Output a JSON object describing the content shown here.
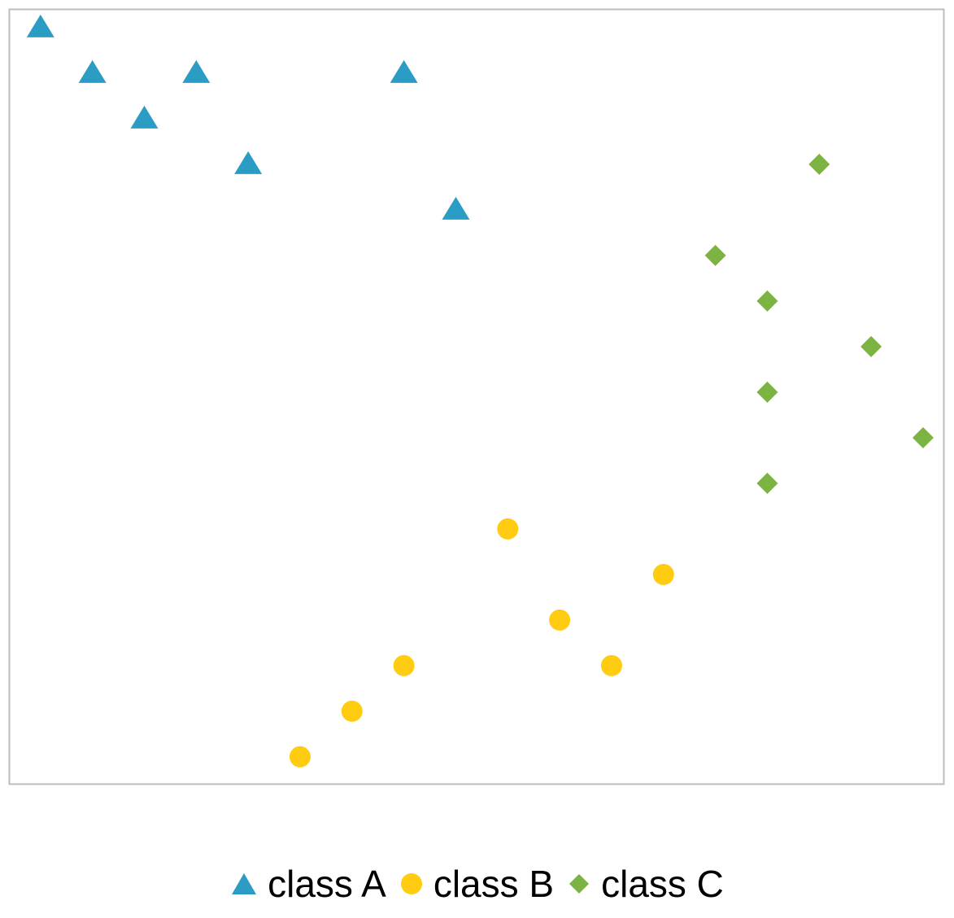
{
  "chart_data": {
    "type": "scatter",
    "title": "",
    "xlabel": "",
    "ylabel": "",
    "grid": false,
    "axes_visible": false,
    "legend_position": "bottom",
    "xlim": [
      0,
      18
    ],
    "ylim": [
      0,
      17
    ],
    "series": [
      {
        "name": "class A",
        "marker": "triangle",
        "color": "#2b9cc4",
        "points": [
          [
            0.6,
            16.6
          ],
          [
            1.6,
            15.6
          ],
          [
            3.6,
            15.6
          ],
          [
            7.6,
            15.6
          ],
          [
            2.6,
            14.6
          ],
          [
            4.6,
            13.6
          ],
          [
            8.6,
            12.6
          ]
        ]
      },
      {
        "name": "class B",
        "marker": "circle",
        "color": "#ffcc11",
        "points": [
          [
            9.6,
            5.6
          ],
          [
            12.6,
            4.6
          ],
          [
            10.6,
            3.6
          ],
          [
            7.6,
            2.6
          ],
          [
            11.6,
            2.6
          ],
          [
            6.6,
            1.6
          ],
          [
            5.6,
            0.6
          ]
        ]
      },
      {
        "name": "class C",
        "marker": "diamond",
        "color": "#7cb342",
        "points": [
          [
            15.6,
            13.6
          ],
          [
            13.6,
            11.6
          ],
          [
            14.6,
            10.6
          ],
          [
            16.6,
            9.6
          ],
          [
            14.6,
            8.6
          ],
          [
            17.6,
            7.6
          ],
          [
            14.6,
            6.6
          ]
        ]
      }
    ]
  }
}
